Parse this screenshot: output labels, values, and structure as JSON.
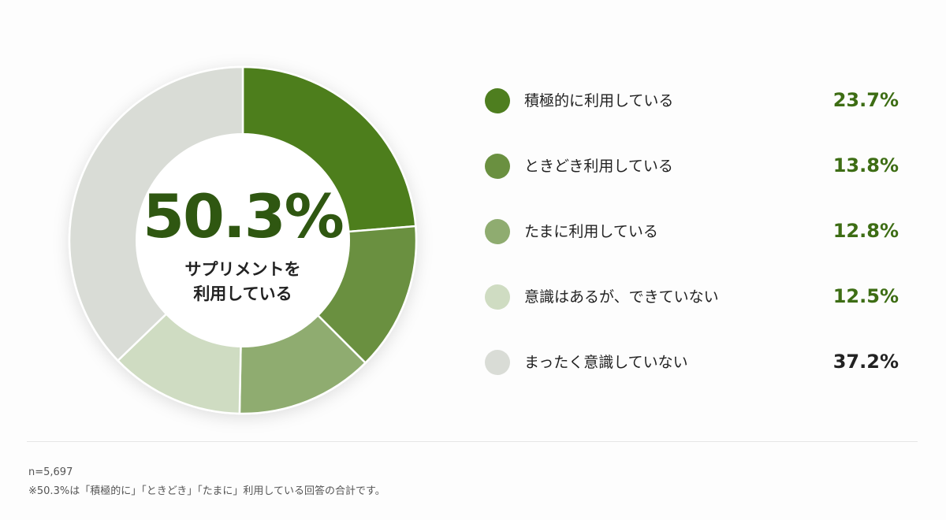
{
  "chart_data": {
    "type": "pie",
    "variant": "donut",
    "categories": [
      "積極的に利用している",
      "ときどき利用している",
      "たまに利用している",
      "意識はあるが、できていない",
      "まったく意識していない"
    ],
    "values": [
      23.7,
      13.8,
      12.8,
      12.5,
      37.2
    ],
    "value_labels": [
      "23.7%",
      "13.8%",
      "12.8%",
      "12.5%",
      "37.2%"
    ],
    "colors": [
      "#4e7e1f",
      "#6a9040",
      "#8fac70",
      "#cfdcc2",
      "#d9dcd6"
    ],
    "value_colors": [
      "#3d6d14",
      "#3d6d14",
      "#3d6d14",
      "#3d6d14",
      "#222222"
    ],
    "center": {
      "value": "50.3%",
      "caption_line1": "サプリメントを",
      "caption_line2": "利用している"
    },
    "legend_position": "right"
  },
  "footer": {
    "sample_size": "n=5,697",
    "note": "※50.3%は「積極的に」「ときどき」「たまに」利用している回答の合計です。"
  }
}
